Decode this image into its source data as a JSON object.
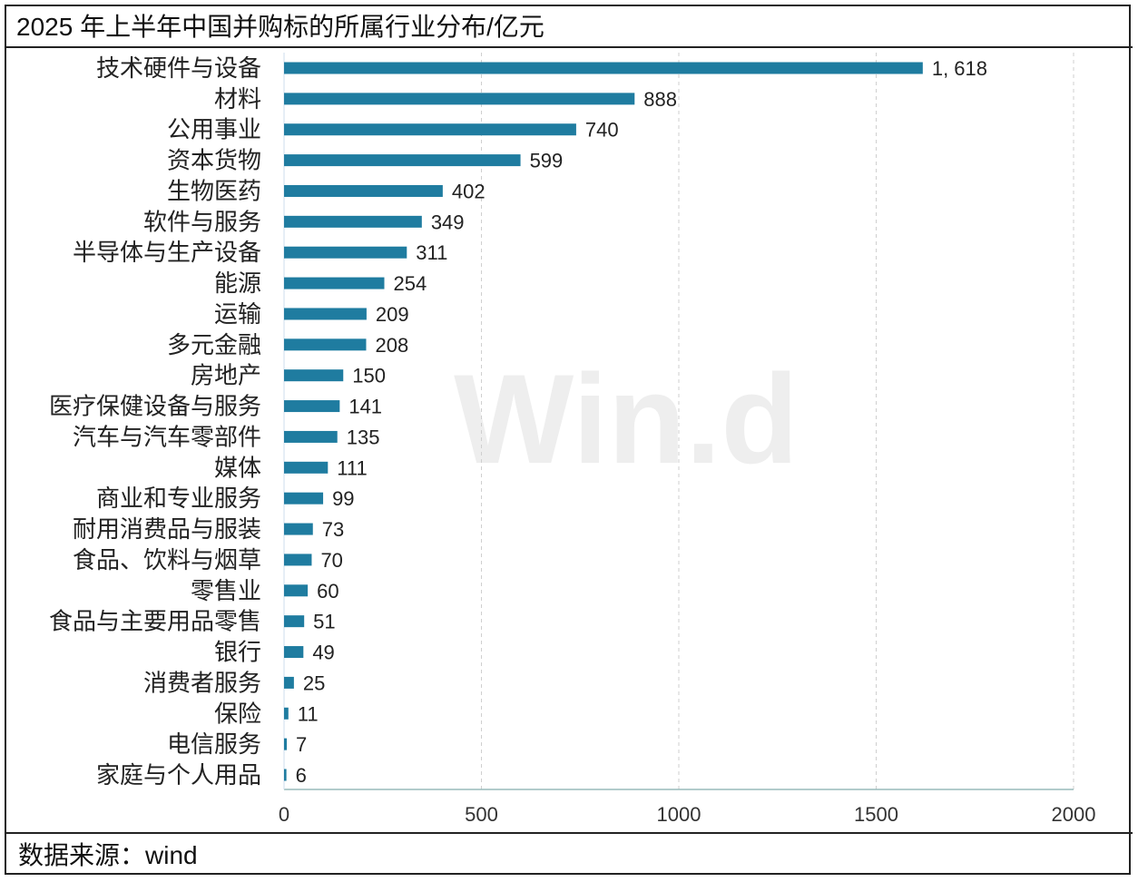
{
  "title": "2025 年上半年中国并购标的所属行业分布/亿元",
  "footer": "数据来源：wind",
  "watermark": "Win.d",
  "chart_data": {
    "type": "bar",
    "orientation": "horizontal",
    "categories": [
      "技术硬件与设备",
      "材料",
      "公用事业",
      "资本货物",
      "生物医药",
      "软件与服务",
      "半导体与生产设备",
      "能源",
      "运输",
      "多元金融",
      "房地产",
      "医疗保健设备与服务",
      "汽车与汽车零部件",
      "媒体",
      "商业和专业服务",
      "耐用消费品与服装",
      "食品、饮料与烟草",
      "零售业",
      "食品与主要用品零售",
      "银行",
      "消费者服务",
      "保险",
      "电信服务",
      "家庭与个人用品"
    ],
    "values": [
      1618,
      888,
      740,
      599,
      402,
      349,
      311,
      254,
      209,
      208,
      150,
      141,
      135,
      111,
      99,
      73,
      70,
      60,
      51,
      49,
      25,
      11,
      7,
      6
    ],
    "data_labels": [
      "1, 618",
      "888",
      "740",
      "599",
      "402",
      "349",
      "311",
      "254",
      "209",
      "208",
      "150",
      "141",
      "135",
      "111",
      "99",
      "73",
      "70",
      "60",
      "51",
      "49",
      "25",
      "11",
      "7",
      "6"
    ],
    "xlim": [
      0,
      2000
    ],
    "xticks": [
      "0",
      "500",
      "1000",
      "1500",
      "2000"
    ],
    "grid": "vertical dashed",
    "bar_color": "#1f7ca0"
  }
}
